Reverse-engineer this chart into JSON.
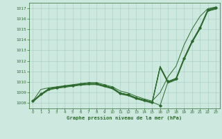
{
  "xlabel": "Graphe pression niveau de la mer (hPa)",
  "ylim": [
    1007.5,
    1017.5
  ],
  "xlim": [
    -0.5,
    23.5
  ],
  "yticks": [
    1008,
    1009,
    1010,
    1011,
    1012,
    1013,
    1014,
    1015,
    1016,
    1017
  ],
  "xticks": [
    0,
    1,
    2,
    3,
    4,
    5,
    6,
    7,
    8,
    9,
    10,
    11,
    12,
    13,
    14,
    15,
    16,
    17,
    18,
    19,
    20,
    21,
    22,
    23
  ],
  "background_color": "#cce8df",
  "line_color": "#2d6a2d",
  "series": [
    {
      "y": [
        1008.2,
        1008.85,
        1009.35,
        1009.5,
        1009.6,
        1009.7,
        1009.8,
        1009.85,
        1009.85,
        1009.65,
        1009.45,
        1008.95,
        1008.8,
        1008.5,
        1008.3,
        1008.1,
        1007.78,
        1010.05,
        1010.35,
        1012.25,
        1013.85,
        1015.15,
        1016.85,
        1017.05
      ],
      "marker": true
    },
    {
      "y": [
        1008.2,
        1008.85,
        1009.35,
        1009.5,
        1009.6,
        1009.7,
        1009.8,
        1009.85,
        1009.85,
        1009.65,
        1009.45,
        1008.95,
        1008.8,
        1008.5,
        1008.3,
        1008.1,
        1011.5,
        1010.05,
        1010.35,
        1012.25,
        1013.85,
        1015.15,
        1016.85,
        1017.05
      ],
      "marker": false
    },
    {
      "y": [
        1008.2,
        1008.85,
        1009.35,
        1009.5,
        1009.6,
        1009.7,
        1009.8,
        1009.85,
        1009.85,
        1009.65,
        1009.45,
        1008.95,
        1008.8,
        1008.5,
        1008.3,
        1008.1,
        1011.45,
        1010.0,
        1010.3,
        1012.2,
        1013.8,
        1015.1,
        1016.8,
        1017.0
      ],
      "marker": false
    },
    {
      "y": [
        1008.15,
        1008.8,
        1009.3,
        1009.45,
        1009.55,
        1009.65,
        1009.75,
        1009.8,
        1009.8,
        1009.6,
        1009.4,
        1008.9,
        1008.75,
        1008.45,
        1008.25,
        1008.05,
        1011.4,
        1009.95,
        1010.25,
        1012.15,
        1013.75,
        1015.05,
        1016.75,
        1016.95
      ],
      "marker": false
    },
    {
      "y": [
        1008.1,
        1008.75,
        1009.25,
        1009.4,
        1009.5,
        1009.6,
        1009.7,
        1009.75,
        1009.75,
        1009.55,
        1009.35,
        1008.85,
        1008.7,
        1008.4,
        1008.2,
        1008.0,
        1011.35,
        1009.9,
        1010.2,
        1012.1,
        1013.7,
        1015.0,
        1016.7,
        1016.9
      ],
      "marker": false
    },
    {
      "y": [
        1008.2,
        1009.3,
        1009.45,
        1009.55,
        1009.65,
        1009.75,
        1009.85,
        1009.95,
        1009.95,
        1009.75,
        1009.55,
        1009.15,
        1008.95,
        1008.65,
        1008.4,
        1008.2,
        1009.0,
        1010.5,
        1011.5,
        1013.5,
        1015.0,
        1016.2,
        1016.95,
        1017.1
      ],
      "marker": false
    }
  ]
}
